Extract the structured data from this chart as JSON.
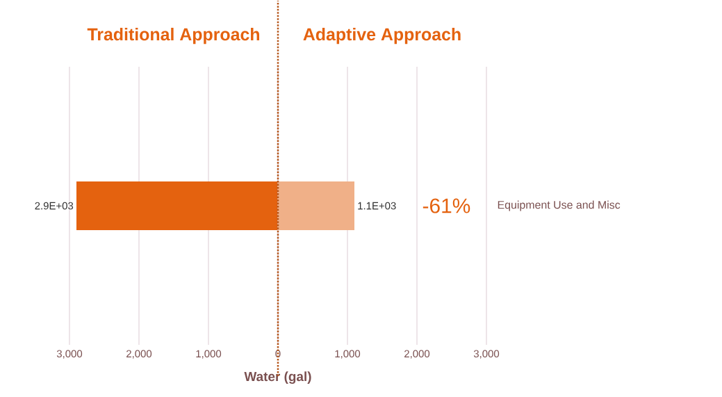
{
  "chart_data": [
    {
      "type": "bar",
      "orientation": "horizontal",
      "title": "Traditional Approach",
      "xlabel": "Water (gal)",
      "categories": [
        null
      ],
      "values": [
        2900
      ],
      "value_labels": [
        "2.9E+03"
      ],
      "color": "#e4620f",
      "xlim": [
        3000,
        0
      ],
      "xticks": [
        {
          "value": 3000,
          "label": "3,000"
        },
        {
          "value": 2000,
          "label": "2,000"
        },
        {
          "value": 1000,
          "label": "1,000"
        },
        0
      ],
      "grid": "x"
    },
    {
      "type": "bar",
      "orientation": "horizontal",
      "title": "Adaptive Approach",
      "categories": [
        "Equipment Use and Misc"
      ],
      "values": [
        1100
      ],
      "value_labels": [
        "1.1E+03"
      ],
      "color": "#f0b088",
      "annotations": [
        "-61%"
      ],
      "xlim": [
        0,
        3000
      ],
      "xticks": [
        {
          "value": 0,
          "label": null
        },
        {
          "value": 1000,
          "label": "1,000"
        },
        {
          "value": 2000,
          "label": "2,000"
        },
        {
          "value": 3000,
          "label": "3,000"
        }
      ],
      "grid": "x",
      "ref_lines": [
        {
          "axis": "x",
          "value": 0,
          "color": "#b5561b",
          "line_style": "dotted"
        }
      ]
    }
  ]
}
